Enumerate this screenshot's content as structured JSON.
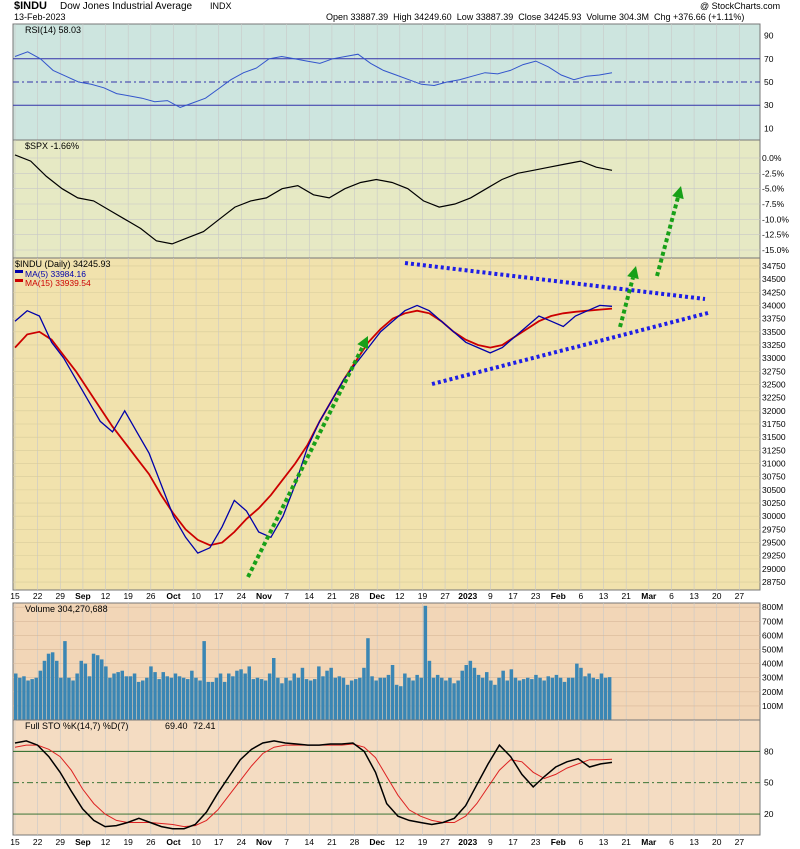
{
  "header": {
    "symbol": "$INDU",
    "name": "Dow Jones Industrial Average",
    "exchange": "INDX",
    "date": "13-Feb-2023",
    "credit": "@ StockCharts.com",
    "open_label": "Open",
    "open": "33887.39",
    "high_label": "High",
    "high": "34249.60",
    "low_label": "Low",
    "low": "33887.39",
    "close_label": "Close",
    "close": "34245.93",
    "volume_label": "Volume",
    "volume": "304.3M",
    "chg_label": "Chg",
    "chg": "+376.66 (+1.11%)"
  },
  "colors": {
    "rsi_bg": "#cde5df",
    "spx_bg": "#e6e9c4",
    "price_bg": "#f1e2ad",
    "vol_bg": "#f2d6b7",
    "sto_bg": "#f4dcc2",
    "blue": "#0000aa",
    "red": "#cc0000",
    "vol_bar": "#3a86b4",
    "channel": "#1e1ee6",
    "arrow": "#18a018"
  },
  "chart_data": {
    "type": "line",
    "x": [
      "15",
      "22",
      "29",
      "Sep",
      "12",
      "19",
      "26",
      "Oct",
      "10",
      "17",
      "24",
      "Nov",
      "7",
      "14",
      "21",
      "28",
      "Dec",
      "12",
      "19",
      "27",
      "2023",
      "9",
      "17",
      "23",
      "Feb",
      "6",
      "13",
      "21",
      "Mar",
      "6",
      "13",
      "20",
      "27"
    ],
    "rsi": {
      "label": "RSI(14) 58.03",
      "ticks": [
        "90",
        "70",
        "50",
        "30",
        "10"
      ],
      "levels": [
        70,
        50,
        30
      ],
      "values": [
        72,
        76,
        70,
        60,
        55,
        50,
        48,
        45,
        40,
        38,
        36,
        33,
        34,
        28,
        32,
        36,
        44,
        52,
        58,
        62,
        70,
        72,
        70,
        68,
        66,
        70,
        72,
        74,
        66,
        60,
        56,
        52,
        48,
        47,
        50,
        52,
        55,
        58,
        57,
        60,
        65,
        68,
        63,
        56,
        52,
        55,
        56,
        58
      ]
    },
    "spx": {
      "label": "$SPX -1.66%",
      "ticks": [
        "0.0%",
        "-2.5%",
        "-5.0%",
        "-7.5%",
        "-10.0%",
        "-12.5%",
        "-15.0%"
      ],
      "values": [
        0.5,
        -0.5,
        -3,
        -5,
        -6.5,
        -7,
        -8.5,
        -10,
        -11.5,
        -13.5,
        -14,
        -13,
        -12,
        -10,
        -8,
        -7,
        -6.5,
        -5,
        -4.5,
        -6,
        -6.5,
        -5,
        -4,
        -3.5,
        -4,
        -5,
        -7,
        -8,
        -7.5,
        -6.5,
        -5,
        -3.5,
        -2.5,
        -2,
        -1.5,
        -1,
        -0.5,
        -1.5,
        -2
      ]
    },
    "price": {
      "label": "$INDU (Daily) 34245.93",
      "ma5_label": "MA(5) 33984.16",
      "ma15_label": "MA(15) 33939.54",
      "ticks": [
        "34750",
        "34500",
        "34250",
        "34000",
        "33750",
        "33500",
        "33250",
        "33000",
        "32750",
        "32500",
        "32250",
        "32000",
        "31750",
        "31500",
        "31250",
        "31000",
        "30750",
        "30500",
        "30250",
        "30000",
        "29750",
        "29500",
        "29250",
        "29000",
        "28750"
      ],
      "ylim": [
        28600,
        34900
      ],
      "ma5": [
        33700,
        33900,
        33800,
        33300,
        33000,
        32600,
        32200,
        31800,
        31600,
        32000,
        31600,
        31200,
        30600,
        30000,
        29600,
        29300,
        29400,
        29800,
        30300,
        30100,
        29700,
        29600,
        30000,
        30600,
        31300,
        31800,
        32200,
        32600,
        32900,
        33200,
        33500,
        33700,
        33900,
        34000,
        33900,
        33700,
        33500,
        33300,
        33200,
        33100,
        33200,
        33400,
        33600,
        33800,
        33700,
        33600,
        33800,
        33900,
        34000,
        33984
      ],
      "ma15": [
        33200,
        33450,
        33500,
        33350,
        33050,
        32750,
        32400,
        32050,
        31700,
        31400,
        31100,
        30800,
        30400,
        30050,
        29750,
        29550,
        29450,
        29500,
        29700,
        29950,
        30150,
        30400,
        30700,
        31000,
        31350,
        31800,
        32200,
        32600,
        32950,
        33300,
        33550,
        33750,
        33850,
        33900,
        33850,
        33700,
        33500,
        33350,
        33250,
        33200,
        33250,
        33400,
        33550,
        33700,
        33800,
        33850,
        33880,
        33900,
        33920,
        33940
      ]
    },
    "volume": {
      "label": "Volume 304,270,688",
      "ticks": [
        "800M",
        "700M",
        "600M",
        "500M",
        "400M",
        "300M",
        "200M",
        "100M"
      ],
      "values": [
        330,
        300,
        310,
        280,
        290,
        300,
        350,
        420,
        470,
        480,
        420,
        300,
        560,
        300,
        280,
        330,
        420,
        400,
        310,
        470,
        460,
        430,
        380,
        300,
        330,
        340,
        350,
        310,
        310,
        330,
        270,
        280,
        300,
        380,
        340,
        290,
        340,
        310,
        300,
        330,
        310,
        300,
        290,
        350,
        300,
        280,
        560,
        270,
        270,
        300,
        330,
        270,
        330,
        310,
        350,
        360,
        330,
        380,
        290,
        300,
        290,
        280,
        330,
        440,
        300,
        260,
        300,
        280,
        330,
        300,
        370,
        290,
        280,
        290,
        380,
        310,
        350,
        370,
        300,
        310,
        300,
        250,
        280,
        290,
        300,
        370,
        580,
        310,
        280,
        300,
        300,
        320,
        390,
        250,
        240,
        330,
        300,
        280,
        320,
        300,
        810,
        420,
        300,
        320,
        300,
        280,
        300,
        260,
        280,
        350,
        390,
        420,
        370,
        320,
        300,
        340,
        280,
        250,
        300,
        350,
        280,
        360,
        300,
        280,
        290,
        300,
        290,
        320,
        300,
        280,
        310,
        300,
        320,
        300,
        270,
        300,
        300,
        400,
        370,
        310,
        330,
        300,
        290,
        330,
        300,
        304
      ]
    },
    "sto": {
      "label": "Full STO %K(14,7) %D(7)",
      "k_value": "69.40",
      "d_value": "72.41",
      "ticks": [
        "80",
        "50",
        "20"
      ],
      "levels": [
        80,
        50,
        20
      ],
      "k": [
        88,
        90,
        86,
        75,
        60,
        42,
        25,
        14,
        8,
        9,
        12,
        16,
        12,
        8,
        6,
        6,
        10,
        22,
        40,
        56,
        72,
        82,
        88,
        90,
        88,
        87,
        86,
        86,
        87,
        87,
        88,
        80,
        60,
        30,
        18,
        14,
        12,
        10,
        12,
        16,
        28,
        48,
        68,
        86,
        75,
        58,
        46,
        56,
        65,
        70,
        73,
        65,
        68,
        69.4
      ],
      "d": [
        84,
        86,
        86,
        82,
        75,
        62,
        44,
        30,
        20,
        14,
        12,
        12,
        12,
        11,
        10,
        8,
        9,
        14,
        24,
        38,
        52,
        66,
        78,
        84,
        86,
        86,
        86,
        86,
        86,
        86,
        87,
        84,
        74,
        56,
        38,
        24,
        18,
        14,
        12,
        12,
        18,
        30,
        46,
        62,
        72,
        70,
        60,
        54,
        58,
        64,
        68,
        72,
        72,
        72.4
      ]
    }
  }
}
